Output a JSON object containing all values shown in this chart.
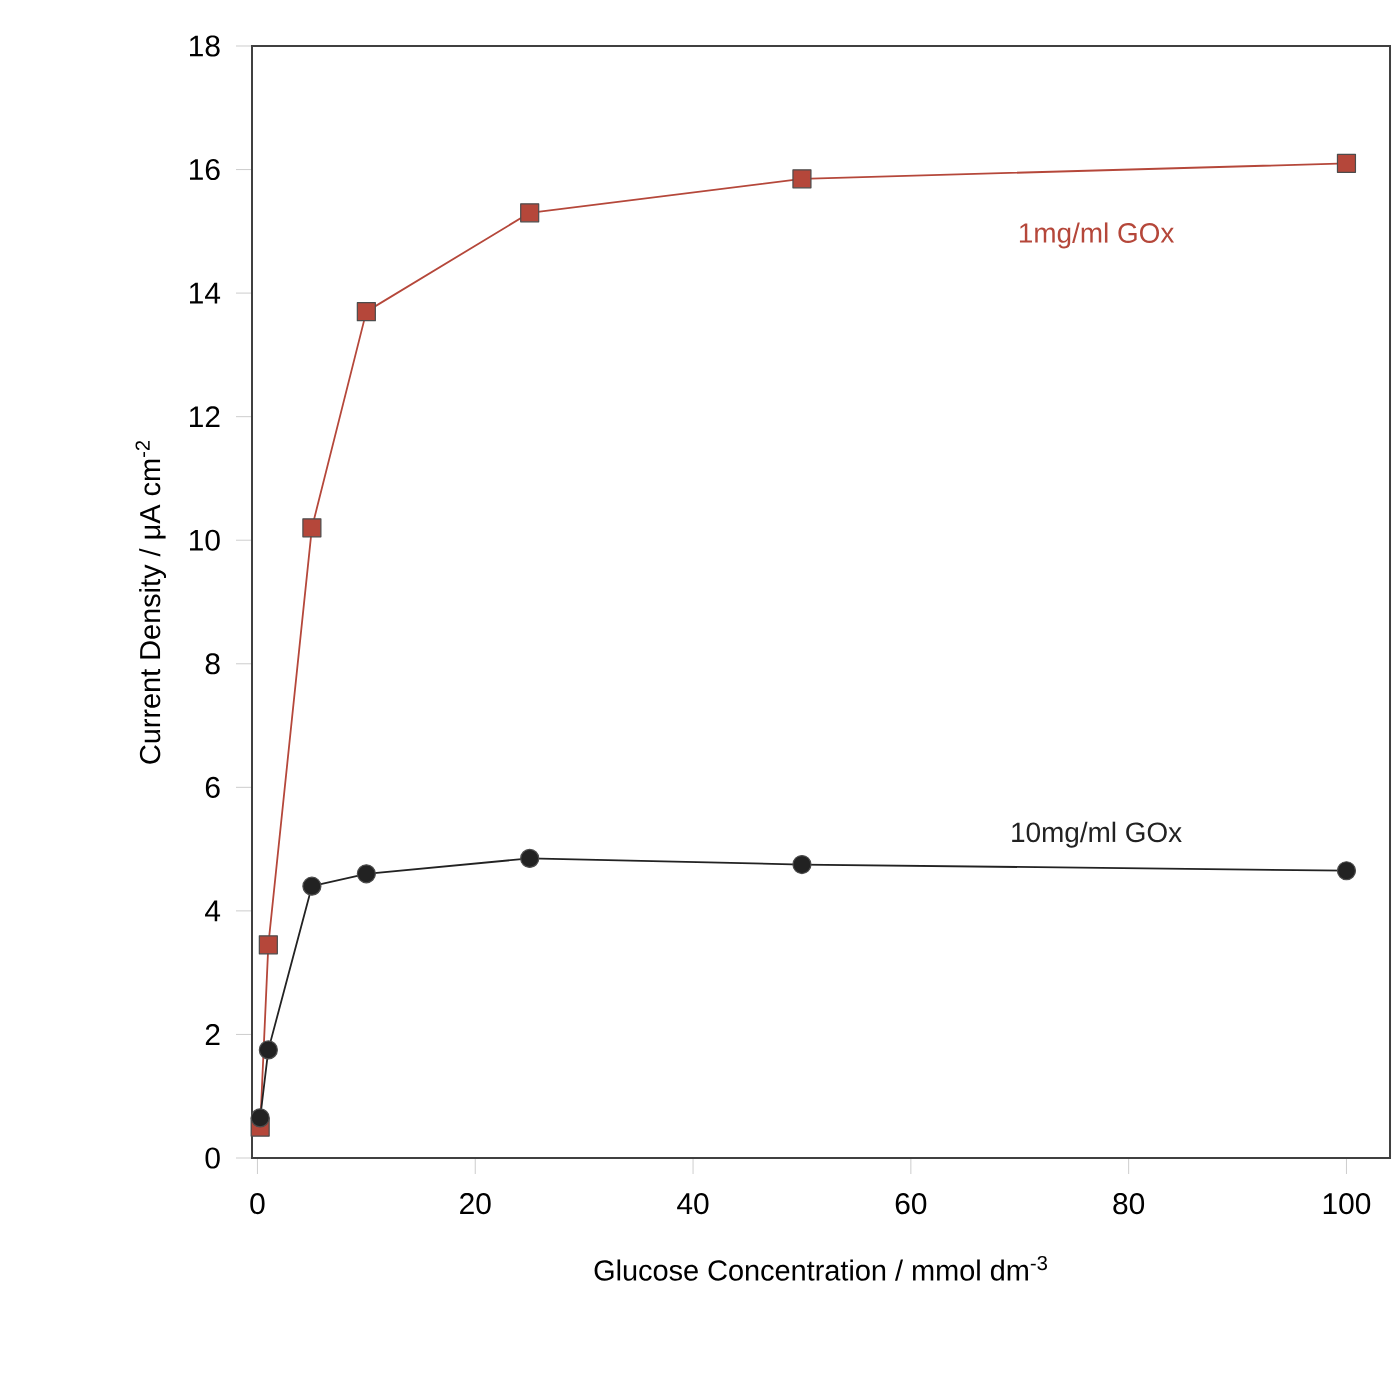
{
  "chart_data": {
    "type": "line",
    "xlabel": "Glucose Concentration / mmol dm$^{-3}$",
    "ylabel": "Current Density / μA cm$^{-2}$",
    "xlim": [
      -0.5,
      104
    ],
    "ylim": [
      0,
      18
    ],
    "xticks": [
      0,
      20,
      40,
      60,
      80,
      100
    ],
    "yticks": [
      0,
      2,
      4,
      6,
      8,
      10,
      12,
      14,
      16,
      18
    ],
    "grid": false,
    "legend": false,
    "series": [
      {
        "name": "1mg/ml GOx",
        "color": "#b5473a",
        "marker": "square",
        "x": [
          0.25,
          1,
          5,
          10,
          25,
          50,
          100
        ],
        "values": [
          0.5,
          3.45,
          10.2,
          13.7,
          15.3,
          15.85,
          16.1
        ]
      },
      {
        "name": "10mg/ml GOx",
        "color": "#222222",
        "marker": "circle",
        "x": [
          0.25,
          1,
          5,
          10,
          25,
          50,
          100
        ],
        "values": [
          0.65,
          1.75,
          4.4,
          4.6,
          4.85,
          4.75,
          4.65
        ]
      }
    ]
  }
}
